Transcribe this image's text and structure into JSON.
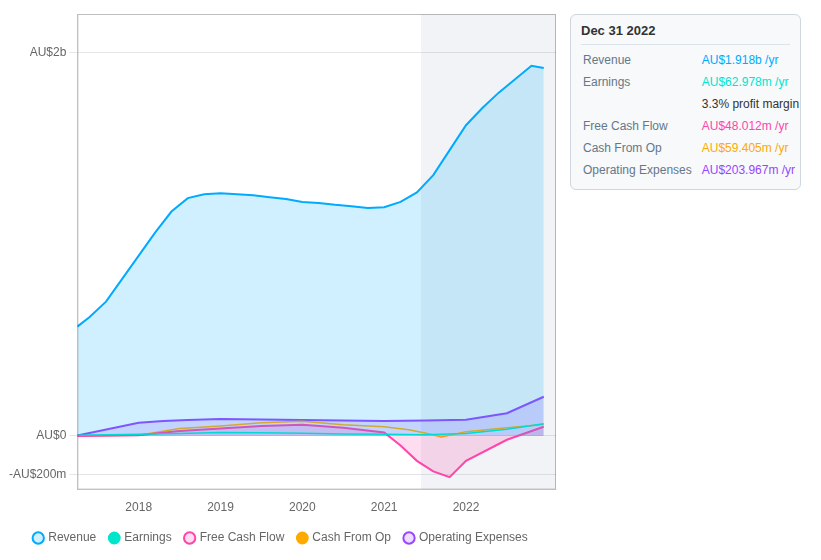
{
  "chart_data": {
    "type": "line",
    "series": [
      {
        "name": "Revenue",
        "type": "area",
        "color": "#00aaff",
        "x": [
          2017.25,
          2017.4,
          2017.6,
          2017.8,
          2018.0,
          2018.2,
          2018.4,
          2018.6,
          2018.8,
          2019.0,
          2019.2,
          2019.4,
          2019.6,
          2019.8,
          2020.0,
          2020.2,
          2020.4,
          2020.6,
          2020.8,
          2021.0,
          2021.2,
          2021.4,
          2021.6,
          2021.8,
          2022.0,
          2022.2,
          2022.4,
          2022.6,
          2022.8,
          2022.95
        ],
        "values": [
          570,
          620,
          700,
          820,
          940,
          1060,
          1170,
          1240,
          1260,
          1265,
          1260,
          1255,
          1245,
          1235,
          1220,
          1215,
          1205,
          1198,
          1188,
          1192,
          1220,
          1270,
          1360,
          1490,
          1620,
          1710,
          1790,
          1860,
          1930,
          1918
        ]
      },
      {
        "name": "Earnings",
        "type": "line",
        "color": "#00e5cc",
        "x": [
          2017.25,
          2018.0,
          2018.5,
          2019.0,
          2019.5,
          2020.0,
          2020.5,
          2021.0,
          2021.5,
          2022.0,
          2022.5,
          2022.95
        ],
        "values": [
          3,
          8,
          12,
          18,
          16,
          14,
          10,
          8,
          6,
          12,
          35,
          63
        ]
      },
      {
        "name": "Free Cash Flow",
        "type": "area",
        "color": "#ff44aa",
        "x": [
          2017.25,
          2018.0,
          2018.5,
          2019.0,
          2019.5,
          2020.0,
          2020.5,
          2021.0,
          2021.2,
          2021.4,
          2021.6,
          2021.8,
          2022.0,
          2022.5,
          2022.95
        ],
        "values": [
          0,
          3,
          25,
          38,
          52,
          58,
          42,
          18,
          -50,
          -130,
          -185,
          -215,
          -130,
          -20,
          48
        ]
      },
      {
        "name": "Cash From Op",
        "type": "line",
        "color": "#ffaa00",
        "x": [
          2017.25,
          2018.0,
          2018.5,
          2019.0,
          2019.5,
          2020.0,
          2020.5,
          2021.0,
          2021.3,
          2021.5,
          2021.7,
          2022.0,
          2022.5,
          2022.95
        ],
        "values": [
          0,
          4,
          38,
          52,
          68,
          76,
          58,
          48,
          32,
          15,
          -5,
          22,
          42,
          59
        ]
      },
      {
        "name": "Operating Expenses",
        "type": "area",
        "color": "#9944ff",
        "x": [
          2017.25,
          2018.0,
          2018.3,
          2018.6,
          2019.0,
          2019.5,
          2020.0,
          2020.5,
          2021.0,
          2021.5,
          2022.0,
          2022.5,
          2022.95
        ],
        "values": [
          2,
          68,
          78,
          83,
          88,
          86,
          83,
          80,
          78,
          80,
          84,
          118,
          204
        ]
      }
    ],
    "xlim": [
      2017.25,
      2023.1
    ],
    "xticks": [
      2018,
      2019,
      2020,
      2021,
      2022
    ],
    "ylim": [
      -280,
      2200
    ],
    "yticks": [
      {
        "value": 2000,
        "label": "AU$2b"
      },
      {
        "value": 0,
        "label": "AU$0"
      },
      {
        "value": -200,
        "label": "-AU$200m"
      }
    ],
    "grid": true,
    "legend": "bottom",
    "annotations": [
      {
        "x_from": 2021.45,
        "x_to": 2023.1
      },
      {
        "title": "Dec 31 2022",
        "rows": [
          [
            "Revenue",
            "AU$1.918b /yr"
          ],
          [
            "Earnings",
            "AU$62.978m /yr"
          ],
          [
            "3.3% profit margin"
          ],
          [
            "Free Cash Flow",
            "AU$48.012m /yr"
          ],
          [
            "Cash From Op",
            "AU$59.405m /yr"
          ],
          [
            "Operating Expenses",
            "AU$203.967m /yr"
          ]
        ]
      }
    ]
  }
}
